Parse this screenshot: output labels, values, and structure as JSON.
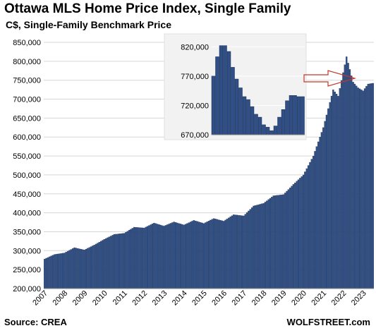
{
  "title": "Ottawa MLS Home Price Index, Single Family",
  "subtitle": "C$, Single-Family Benchmark Price",
  "source": "Source: CREA",
  "brand": "WOLFSTREET.com",
  "colors": {
    "bar": "#2f4f86",
    "bar_edge": "#1b2f52",
    "grid": "#d6d6d6",
    "inset_bg": "#f2f2f2",
    "arrow": "#c0392b"
  },
  "chart_data": {
    "type": "bar",
    "title": "Ottawa MLS Home Price Index, Single Family",
    "subtitle": "C$, Single-Family Benchmark Price",
    "ylim": [
      200000,
      850000
    ],
    "y_ticks": [
      200000,
      250000,
      300000,
      350000,
      400000,
      450000,
      500000,
      550000,
      600000,
      650000,
      700000,
      750000,
      800000,
      850000
    ],
    "y_tick_labels": [
      "200,000",
      "250,000",
      "300,000",
      "350,000",
      "400,000",
      "450,000",
      "500,000",
      "550,000",
      "600,000",
      "650,000",
      "700,000",
      "750,000",
      "800,000",
      "850,000"
    ],
    "x_tick_labels": [
      "2007",
      "2008",
      "2009",
      "2010",
      "2011",
      "2012",
      "2013",
      "2014",
      "2015",
      "2016",
      "2017",
      "2018",
      "2019",
      "2020",
      "2021",
      "2022",
      "2023"
    ],
    "grid": true,
    "monthly": {
      "start": "2007-01",
      "anchors": [
        [
          "2007-01",
          278000
        ],
        [
          "2007-07",
          290000
        ],
        [
          "2008-01",
          294000
        ],
        [
          "2008-07",
          308000
        ],
        [
          "2009-01",
          302000
        ],
        [
          "2009-07",
          315000
        ],
        [
          "2010-01",
          330000
        ],
        [
          "2010-07",
          343000
        ],
        [
          "2011-01",
          346000
        ],
        [
          "2011-07",
          362000
        ],
        [
          "2012-01",
          360000
        ],
        [
          "2012-07",
          373000
        ],
        [
          "2013-01",
          365000
        ],
        [
          "2013-07",
          376000
        ],
        [
          "2014-01",
          368000
        ],
        [
          "2014-07",
          380000
        ],
        [
          "2015-01",
          372000
        ],
        [
          "2015-07",
          385000
        ],
        [
          "2016-01",
          378000
        ],
        [
          "2016-07",
          395000
        ],
        [
          "2017-01",
          392000
        ],
        [
          "2017-07",
          418000
        ],
        [
          "2018-01",
          425000
        ],
        [
          "2018-07",
          445000
        ],
        [
          "2019-01",
          448000
        ],
        [
          "2019-07",
          475000
        ],
        [
          "2020-01",
          500000
        ],
        [
          "2020-07",
          550000
        ],
        [
          "2021-01",
          625000
        ],
        [
          "2021-07",
          725000
        ],
        [
          "2021-10",
          708000
        ],
        [
          "2022-01",
          770000
        ],
        [
          "2022-03",
          812000
        ],
        [
          "2022-07",
          745000
        ],
        [
          "2022-10",
          730000
        ],
        [
          "2023-01",
          722000
        ],
        [
          "2023-04",
          740000
        ],
        [
          "2023-07",
          742000
        ]
      ]
    },
    "inset": {
      "ylim": [
        670000,
        830000
      ],
      "y_ticks": [
        670000,
        720000,
        770000,
        820000
      ],
      "y_tick_labels": [
        "670,000",
        "720,000",
        "770,000",
        "820,000"
      ],
      "values": [
        770000,
        803000,
        822000,
        822000,
        812000,
        785000,
        765000,
        750000,
        735000,
        730000,
        718000,
        705000,
        700000,
        687000,
        683000,
        677000,
        685000,
        700000,
        713000,
        728000,
        737000,
        737000,
        735000,
        735000
      ]
    }
  }
}
